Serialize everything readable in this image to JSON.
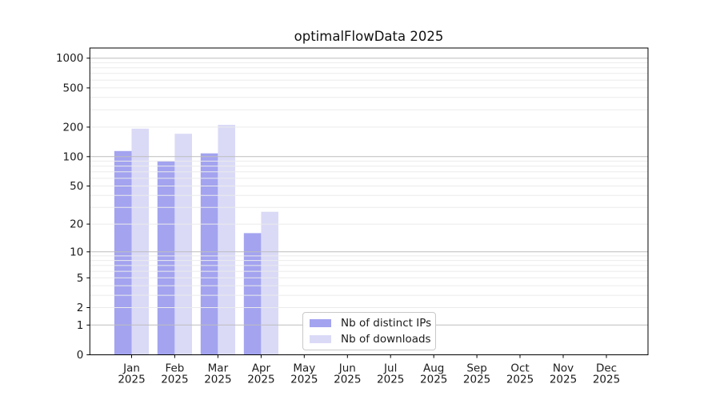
{
  "chart_data": {
    "type": "bar",
    "title": "optimalFlowData 2025",
    "months": [
      "Jan",
      "Feb",
      "Mar",
      "Apr",
      "May",
      "Jun",
      "Jul",
      "Aug",
      "Sep",
      "Oct",
      "Nov",
      "Dec"
    ],
    "year_label": "2025",
    "categories": [
      "Jan 2025",
      "Feb 2025",
      "Mar 2025",
      "Apr 2025",
      "May 2025",
      "Jun 2025",
      "Jul 2025",
      "Aug 2025",
      "Sep 2025",
      "Oct 2025",
      "Nov 2025",
      "Dec 2025"
    ],
    "series": [
      {
        "name": "Nb of distinct IPs",
        "color": "#a3a3f0",
        "values": [
          114,
          90,
          108,
          16,
          null,
          null,
          null,
          null,
          null,
          null,
          null,
          null
        ]
      },
      {
        "name": "Nb of downloads",
        "color": "#dadaf7",
        "values": [
          193,
          171,
          211,
          27,
          null,
          null,
          null,
          null,
          null,
          null,
          null,
          null
        ]
      }
    ],
    "y_ticks": [
      0,
      1,
      2,
      5,
      10,
      20,
      50,
      100,
      200,
      500,
      1000
    ],
    "y_scale": "log10(value+1)",
    "ylim": [
      0,
      1270
    ],
    "grid": {
      "major": [
        1,
        10,
        100,
        1000
      ],
      "minor": [
        2,
        3,
        4,
        5,
        6,
        7,
        8,
        9,
        20,
        30,
        40,
        50,
        60,
        70,
        80,
        90,
        200,
        300,
        400,
        500,
        600,
        700,
        800,
        900
      ]
    },
    "legend_position": "inside-bottom-center",
    "xlabel": "",
    "ylabel": ""
  },
  "colors": {
    "background": "#ffffff",
    "axis": "#000000",
    "text": "#1c1c1c",
    "grid_major": "#bdbdbd",
    "grid_minor": "#ebebeb",
    "bar_distinct_ips": "#a3a3f0",
    "bar_downloads": "#dadaf7"
  }
}
